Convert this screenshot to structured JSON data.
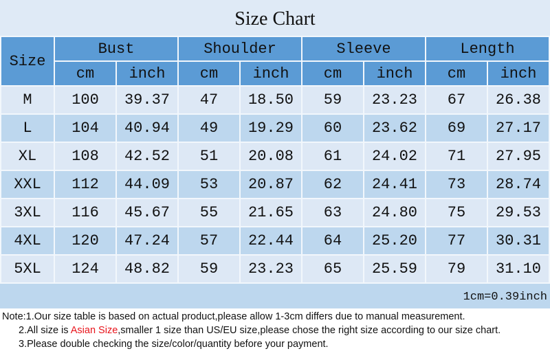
{
  "title": "Size Chart",
  "headers": {
    "size": "Size",
    "groups": [
      "Bust",
      "Shoulder",
      "Sleeve",
      "Length"
    ],
    "cm": "cm",
    "inch": "inch"
  },
  "rows": [
    [
      "M",
      "100",
      "39.37",
      "47",
      "18.50",
      "59",
      "23.23",
      "67",
      "26.38"
    ],
    [
      "L",
      "104",
      "40.94",
      "49",
      "19.29",
      "60",
      "23.62",
      "69",
      "27.17"
    ],
    [
      "XL",
      "108",
      "42.52",
      "51",
      "20.08",
      "61",
      "24.02",
      "71",
      "27.95"
    ],
    [
      "XXL",
      "112",
      "44.09",
      "53",
      "20.87",
      "62",
      "24.41",
      "73",
      "28.74"
    ],
    [
      "3XL",
      "116",
      "45.67",
      "55",
      "21.65",
      "63",
      "24.80",
      "75",
      "29.53"
    ],
    [
      "4XL",
      "120",
      "47.24",
      "57",
      "22.44",
      "64",
      "25.20",
      "77",
      "30.31"
    ],
    [
      "5XL",
      "124",
      "48.82",
      "59",
      "23.23",
      "65",
      "25.59",
      "79",
      "31.10"
    ]
  ],
  "unit_note": "1cm=0.39inch",
  "notes": {
    "n1": "Note:1.Our size table is based on actual product,please allow 1-3cm differs due to manual measurement.",
    "n2_pre": "2.All size is ",
    "n2_red": "Asian Size",
    "n2_post": ",smaller 1 size than US/EU size,please chose the right size according to our size chart.",
    "n3": "3.Please double checking the size/color/quantity before your payment."
  },
  "colors": {
    "header": "#5b9bd5",
    "row_light": "#dde8f5",
    "row_dark": "#bdd7ee",
    "highlight": "#e8141b"
  }
}
